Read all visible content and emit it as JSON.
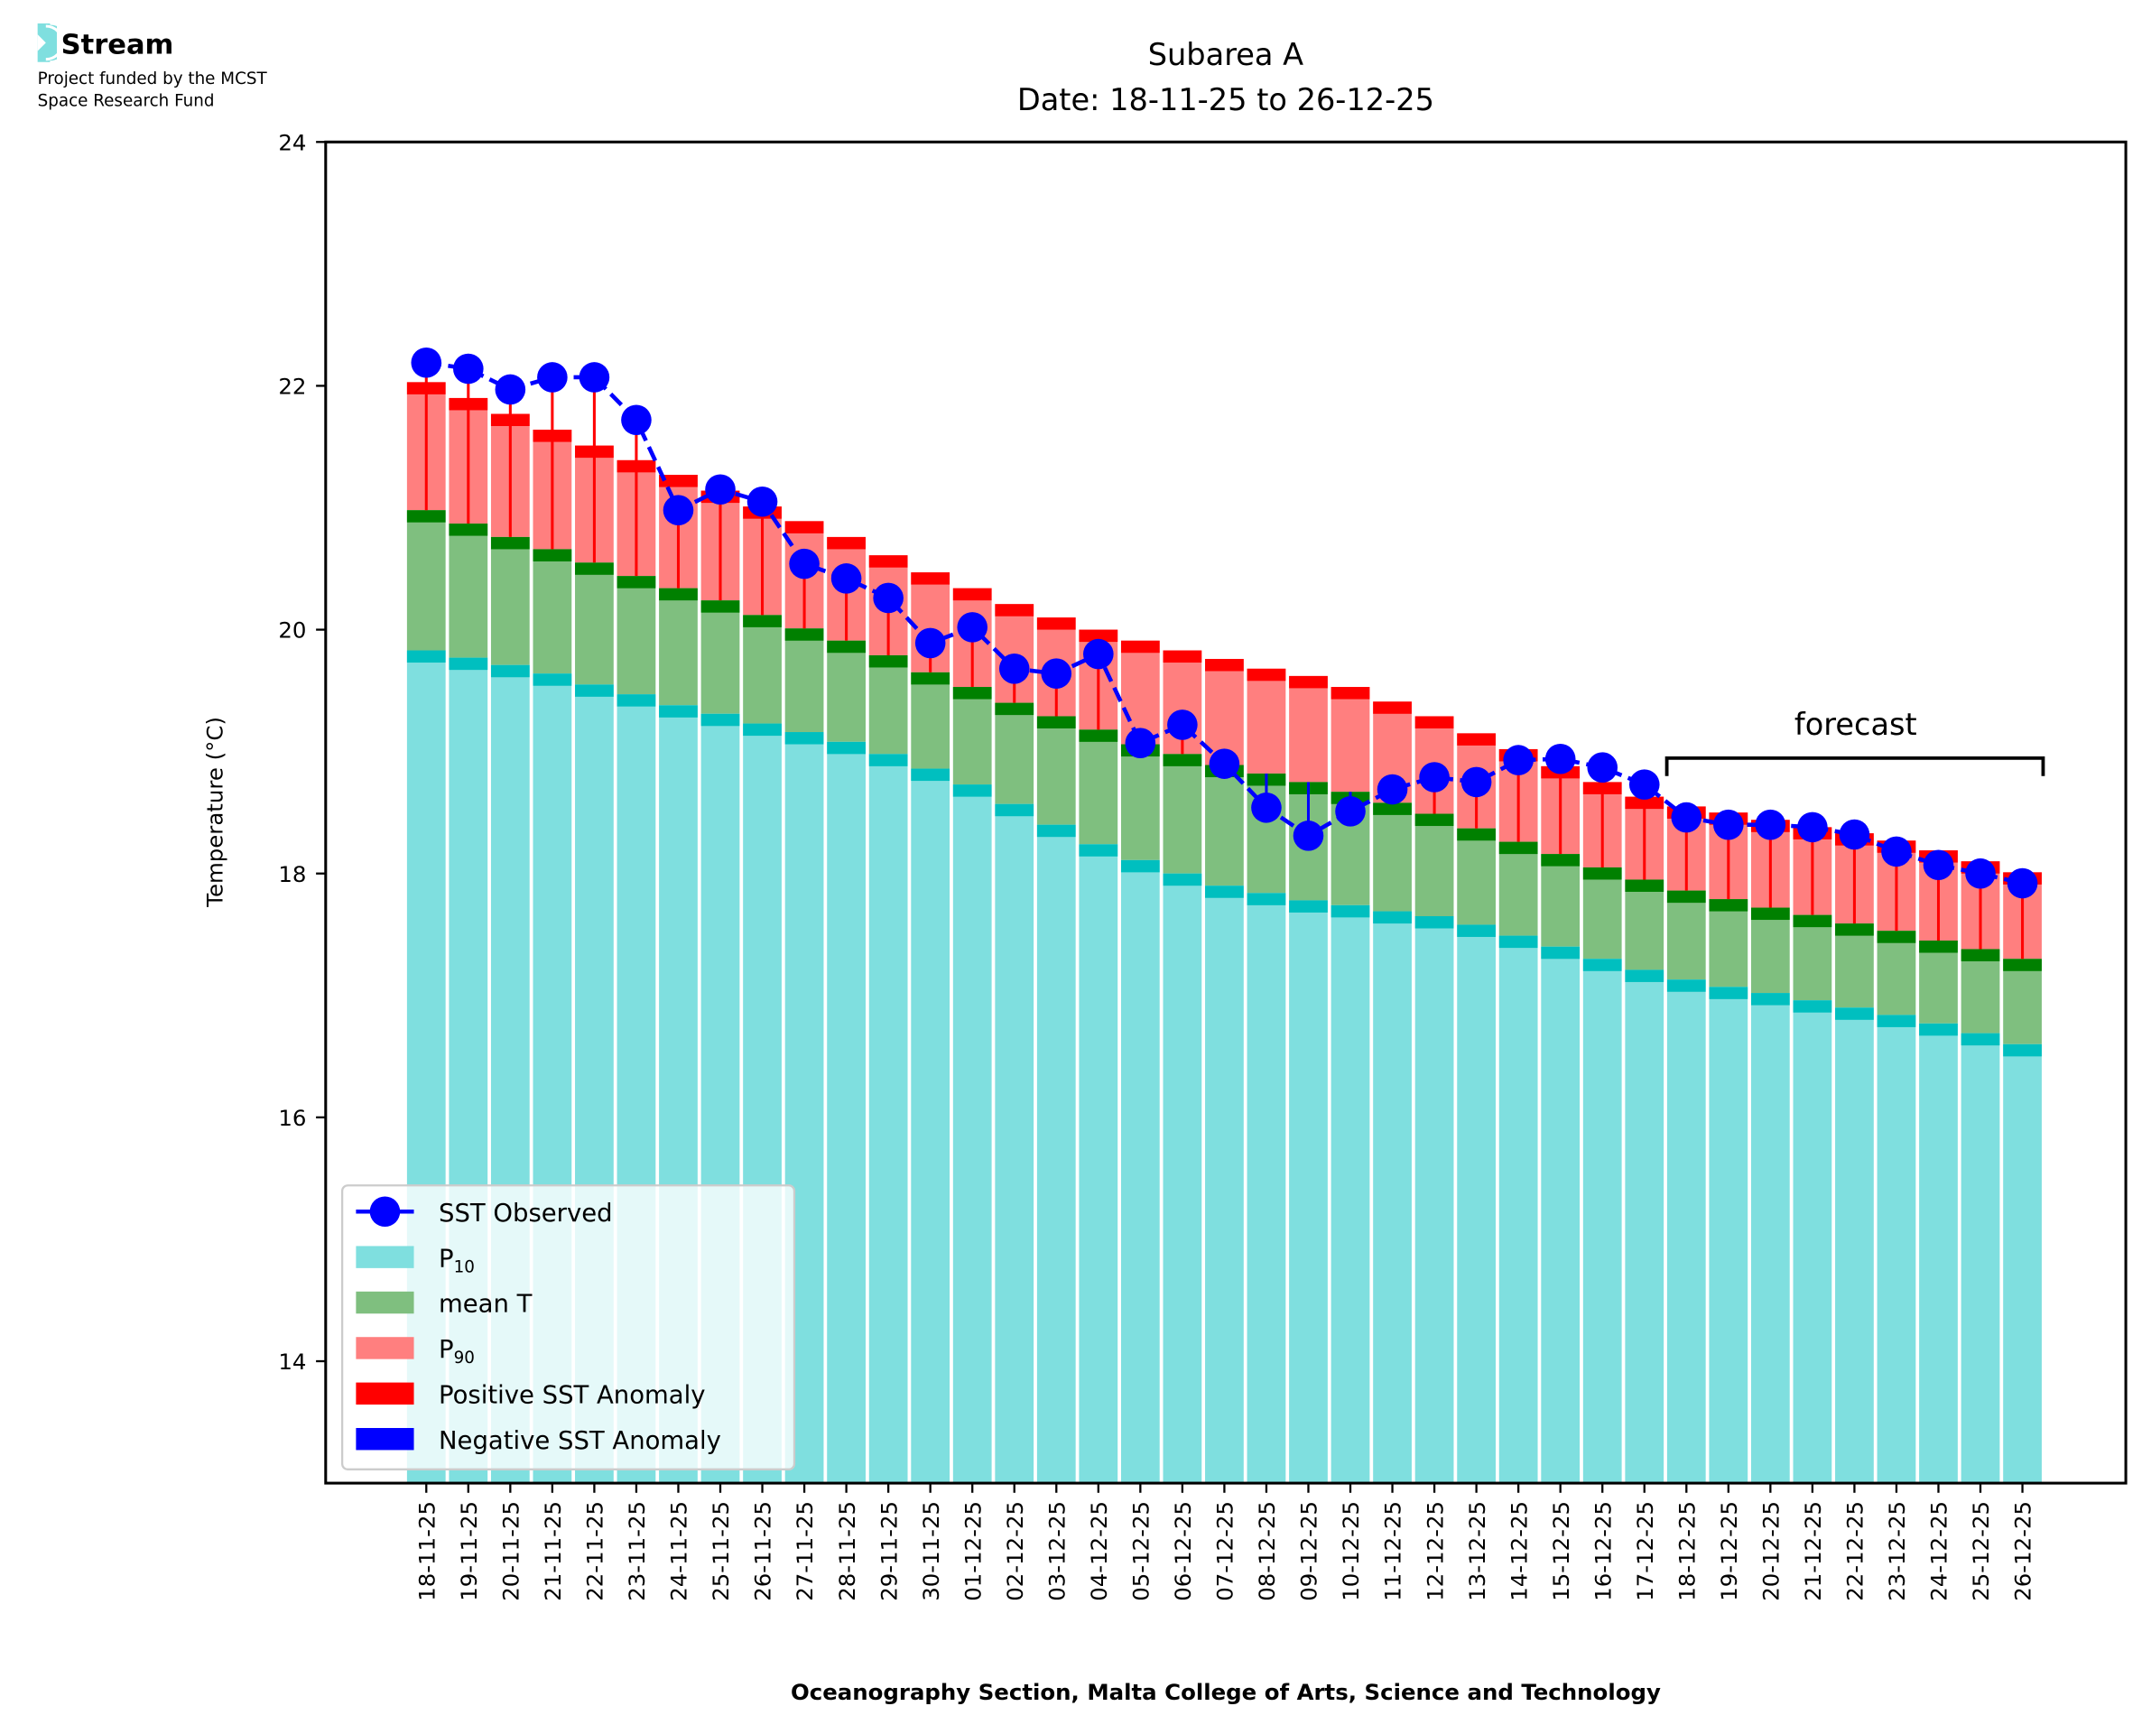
{
  "logo": {
    "name": "Stream",
    "line1": "Project funded by the MCST",
    "line2": "Space Research Fund"
  },
  "chart_data": {
    "type": "bar",
    "title": "Subarea A",
    "subtitle": "Date: 18-11-25 to 26-12-25",
    "xlabel": "Oceanography Section, Malta College of Arts, Science and Technology",
    "ylabel": "Temperature (°C)",
    "ylim": [
      13,
      24
    ],
    "yticks": [
      14,
      16,
      18,
      20,
      22,
      24
    ],
    "grid": false,
    "legend_placement": "bottom-left",
    "annotation": "forecast",
    "forecast_start": "18-12-25",
    "categories": [
      "18-11-25",
      "19-11-25",
      "20-11-25",
      "21-11-25",
      "22-11-25",
      "23-11-25",
      "24-11-25",
      "25-11-25",
      "26-11-25",
      "27-11-25",
      "28-11-25",
      "29-11-25",
      "30-11-25",
      "01-12-25",
      "02-12-25",
      "03-12-25",
      "04-12-25",
      "05-12-25",
      "06-12-25",
      "07-12-25",
      "08-12-25",
      "09-12-25",
      "10-12-25",
      "11-12-25",
      "12-12-25",
      "13-12-25",
      "14-12-25",
      "15-12-25",
      "16-12-25",
      "17-12-25",
      "18-12-25",
      "19-12-25",
      "20-12-25",
      "21-12-25",
      "22-12-25",
      "23-12-25",
      "24-12-25",
      "25-12-25",
      "26-12-25"
    ],
    "series": [
      {
        "name": "SST Observed",
        "color": "#0000ff",
        "values": [
          22.19,
          22.14,
          21.97,
          22.07,
          22.07,
          21.72,
          20.98,
          21.15,
          21.05,
          20.54,
          20.42,
          20.26,
          19.89,
          20.02,
          19.68,
          19.64,
          19.8,
          19.07,
          19.22,
          18.9,
          18.54,
          18.31,
          18.51,
          18.69,
          18.79,
          18.75,
          18.93,
          18.94,
          18.87,
          18.73,
          18.46,
          18.4,
          18.4,
          18.38,
          18.32,
          18.18,
          18.07,
          18.0,
          17.92
        ]
      },
      {
        "name": "P10",
        "color": "#7fdfdf",
        "cap": "#00bfbf",
        "values": [
          19.83,
          19.77,
          19.71,
          19.64,
          19.55,
          19.47,
          19.38,
          19.31,
          19.23,
          19.16,
          19.08,
          18.98,
          18.86,
          18.73,
          18.57,
          18.4,
          18.24,
          18.11,
          18.0,
          17.9,
          17.84,
          17.78,
          17.74,
          17.69,
          17.65,
          17.58,
          17.49,
          17.4,
          17.3,
          17.21,
          17.13,
          17.07,
          17.02,
          16.96,
          16.9,
          16.84,
          16.77,
          16.69,
          16.6
        ]
      },
      {
        "name": "mean T",
        "color": "#7fbf7f",
        "cap": "#008000",
        "values": [
          20.98,
          20.87,
          20.76,
          20.66,
          20.55,
          20.44,
          20.34,
          20.24,
          20.12,
          20.01,
          19.91,
          19.79,
          19.65,
          19.53,
          19.4,
          19.29,
          19.18,
          19.06,
          18.98,
          18.89,
          18.82,
          18.75,
          18.67,
          18.58,
          18.49,
          18.37,
          18.26,
          18.16,
          18.05,
          17.95,
          17.86,
          17.79,
          17.72,
          17.66,
          17.59,
          17.53,
          17.45,
          17.38,
          17.3
        ]
      },
      {
        "name": "P90",
        "color": "#ff7f7f",
        "cap": "#ff0000",
        "values": [
          22.03,
          21.9,
          21.77,
          21.64,
          21.51,
          21.39,
          21.27,
          21.14,
          21.01,
          20.89,
          20.76,
          20.61,
          20.47,
          20.34,
          20.21,
          20.1,
          20.0,
          19.91,
          19.83,
          19.76,
          19.68,
          19.62,
          19.53,
          19.41,
          19.29,
          19.15,
          19.02,
          18.88,
          18.75,
          18.63,
          18.55,
          18.5,
          18.44,
          18.38,
          18.33,
          18.27,
          18.19,
          18.1,
          18.01
        ]
      }
    ],
    "legend": [
      {
        "label": "SST Observed",
        "kind": "line-marker",
        "color": "#0000ff"
      },
      {
        "label": "P",
        "sub": "10",
        "kind": "patch",
        "color": "#7fdfdf"
      },
      {
        "label": "mean T",
        "kind": "patch",
        "color": "#7fbf7f"
      },
      {
        "label": "P",
        "sub": "90",
        "kind": "patch",
        "color": "#ff7f7f"
      },
      {
        "label": "Positive SST Anomaly",
        "kind": "patch",
        "color": "#ff0000"
      },
      {
        "label": "Negative SST Anomaly",
        "kind": "patch",
        "color": "#0000ff"
      }
    ]
  }
}
